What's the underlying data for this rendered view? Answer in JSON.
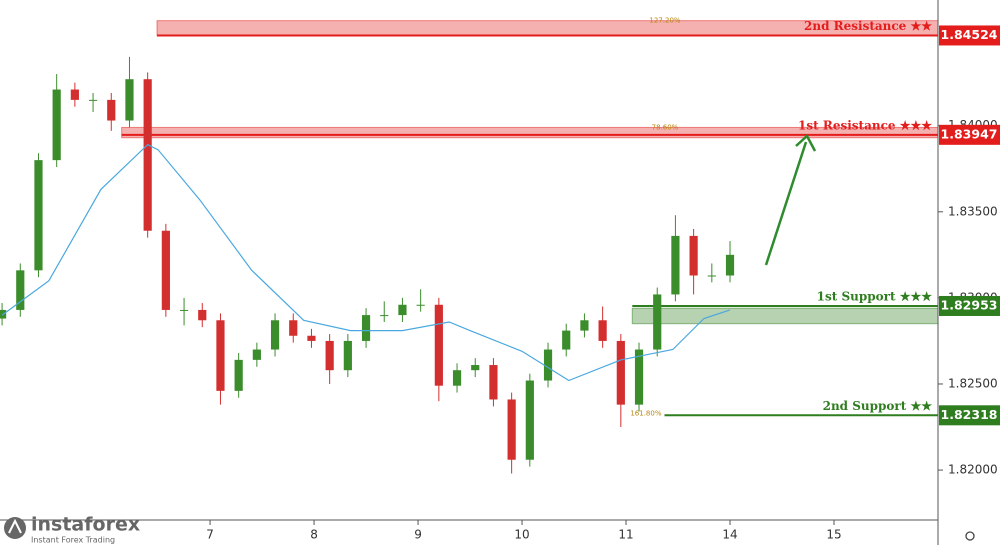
{
  "chart_data": {
    "type": "candlestick",
    "x": [
      5.0,
      5.175,
      5.35,
      5.525,
      5.7,
      5.875,
      6.05,
      6.225,
      6.4,
      6.575,
      6.75,
      6.925,
      7.1,
      7.275,
      7.45,
      7.625,
      7.8,
      7.975,
      8.15,
      8.325,
      8.5,
      8.675,
      8.85,
      9.025,
      9.2,
      9.375,
      9.55,
      9.725,
      9.9,
      10.075,
      10.25,
      10.425,
      10.6,
      10.775,
      10.95,
      11.125,
      11.3,
      11.475,
      11.65,
      11.825,
      12.0
    ],
    "open": [
      1.8288,
      1.8293,
      1.8316,
      1.838,
      1.8421,
      1.8415,
      1.8415,
      1.8403,
      1.8427,
      1.8339,
      1.8293,
      1.8293,
      1.8287,
      1.8246,
      1.8264,
      1.827,
      1.8287,
      1.8278,
      1.8275,
      1.8258,
      1.8275,
      1.829,
      1.829,
      1.8296,
      1.8296,
      1.8249,
      1.8258,
      1.8261,
      1.8241,
      1.8206,
      1.8252,
      1.827,
      1.8281,
      1.8287,
      1.8275,
      1.8238,
      1.827,
      1.8302,
      1.8336,
      1.8313,
      1.8313
    ],
    "high": [
      1.8297,
      1.832,
      1.8384,
      1.843,
      1.8425,
      1.8419,
      1.8419,
      1.844,
      1.8431,
      1.8343,
      1.83,
      1.8297,
      1.8291,
      1.8268,
      1.8274,
      1.8291,
      1.8291,
      1.8282,
      1.8279,
      1.8279,
      1.8294,
      1.8298,
      1.83,
      1.8305,
      1.83,
      1.8262,
      1.8265,
      1.8265,
      1.8245,
      1.8256,
      1.8274,
      1.8285,
      1.8291,
      1.8295,
      1.8279,
      1.8274,
      1.8306,
      1.8348,
      1.834,
      1.832,
      1.8333
    ],
    "low": [
      1.8284,
      1.8289,
      1.8312,
      1.8376,
      1.8411,
      1.8408,
      1.8397,
      1.8399,
      1.8335,
      1.8289,
      1.8284,
      1.8283,
      1.8238,
      1.8242,
      1.826,
      1.8266,
      1.8274,
      1.8271,
      1.825,
      1.8254,
      1.8271,
      1.8286,
      1.8286,
      1.8292,
      1.824,
      1.8245,
      1.8254,
      1.8237,
      1.8198,
      1.8202,
      1.8248,
      1.8266,
      1.8277,
      1.8271,
      1.8225,
      1.8234,
      1.8266,
      1.8298,
      1.8302,
      1.8309,
      1.8309
    ],
    "close": [
      1.8293,
      1.8316,
      1.838,
      1.8421,
      1.8415,
      1.8415,
      1.8403,
      1.8427,
      1.8339,
      1.8293,
      1.8293,
      1.8287,
      1.8246,
      1.8264,
      1.827,
      1.8287,
      1.8278,
      1.8275,
      1.8258,
      1.8275,
      1.829,
      1.829,
      1.8296,
      1.8296,
      1.8249,
      1.8258,
      1.8261,
      1.8241,
      1.8206,
      1.8252,
      1.827,
      1.8281,
      1.8287,
      1.8275,
      1.8238,
      1.827,
      1.8302,
      1.8336,
      1.8313,
      1.8313,
      1.8325
    ],
    "up_color": "#3b8d2c",
    "down_color": "#d32f2f",
    "ma": {
      "color": "#4aa8e0",
      "x": [
        5.0,
        5.45,
        5.95,
        6.4,
        6.5,
        6.9,
        7.4,
        7.9,
        8.35,
        8.85,
        9.3,
        9.5,
        10.0,
        10.45,
        10.95,
        11.45,
        11.75,
        12.0
      ],
      "values": [
        1.829,
        1.831,
        1.8363,
        1.8389,
        1.8386,
        1.8357,
        1.8316,
        1.8287,
        1.8281,
        1.8281,
        1.8286,
        1.8281,
        1.8269,
        1.8252,
        1.8264,
        1.827,
        1.8288,
        1.8293
      ]
    },
    "xlim": [
      4.98,
      14.0
    ],
    "xticks": [
      7,
      8,
      9,
      10,
      11,
      {
        "value": 12,
        "label": "14"
      },
      {
        "value": 13,
        "label": "15"
      }
    ],
    "ylim": [
      1.8171,
      1.8473
    ],
    "yticks": [
      {
        "value": 1.82,
        "label": "1.82000"
      },
      {
        "value": 1.825,
        "label": "1.82500"
      },
      {
        "value": 1.83,
        "label": "1.83000"
      },
      {
        "value": 1.835,
        "label": "1.83500"
      },
      {
        "value": 1.84,
        "label": "1.84000"
      }
    ],
    "levels": [
      {
        "label": "2nd Resistance ★★",
        "value": 1.84524,
        "color": "#e31c1c",
        "zone": [
          1.84524,
          1.8461
        ],
        "from": 6.49,
        "fib": "127.20%"
      },
      {
        "label": "1st Resistance ★★★",
        "value": 1.83947,
        "color": "#e31c1c",
        "zone": [
          1.8393,
          1.8399
        ],
        "from": 6.15,
        "fib": "78.60%"
      },
      {
        "label": "1st Support ★★★",
        "value": 1.82953,
        "color": "#2e7d1e",
        "zone": [
          1.8285,
          1.8294
        ],
        "from": 11.06
      },
      {
        "label": "2nd Support ★★",
        "value": 1.82318,
        "color": "#2e7d1e",
        "from": 11.37,
        "fib": "161.80%"
      }
    ],
    "watermark": {
      "brand": "instaforex",
      "tagline": "Instant Forex Trading"
    }
  }
}
